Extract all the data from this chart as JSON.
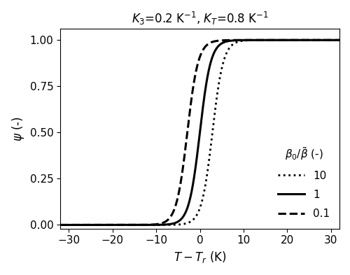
{
  "title": "$K_3$=0.2 K$^{-1}$, $K_T$=0.8 K$^{-1}$",
  "xlabel": "$T - T_r$ (K)",
  "ylabel": "$\\psi$ (-)",
  "xlim": [
    -32,
    32
  ],
  "ylim": [
    -0.02,
    1.06
  ],
  "KT": 0.8,
  "beta_ratios": [
    10,
    1,
    0.1
  ],
  "linestyles": [
    "dotted",
    "solid",
    "dashed"
  ],
  "linewidths": [
    2.0,
    2.2,
    2.2
  ],
  "legend_title": "$\\beta_0/\\tilde{\\beta}$ (-)",
  "legend_labels": [
    "10",
    "1",
    "0.1"
  ],
  "color": "#000000",
  "background_color": "#ffffff",
  "x_ticks": [
    -30,
    -20,
    -10,
    0,
    10,
    20,
    30
  ],
  "y_ticks": [
    0.0,
    0.25,
    0.5,
    0.75,
    1.0
  ]
}
